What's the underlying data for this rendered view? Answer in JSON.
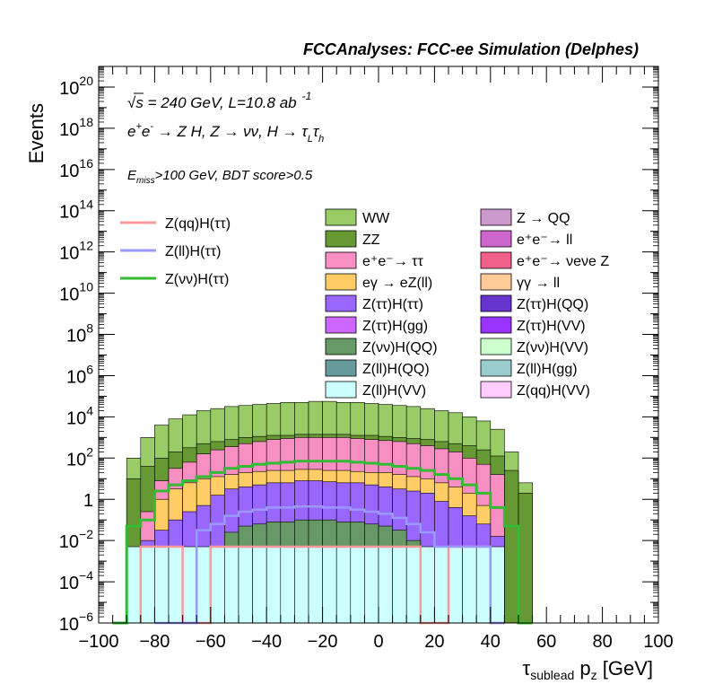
{
  "chart_data": {
    "type": "histogram",
    "title": "FCCAnalyses: FCC-ee Simulation (Delphes)",
    "xlabel": {
      "base": "τ",
      "sub": "sublead",
      "rest": " p",
      "sub2": "z",
      "unit": " [GeV]"
    },
    "ylabel": "Events",
    "xlim": [
      -100,
      100
    ],
    "ylim": [
      1e-06,
      1e+21
    ],
    "log_y": true,
    "bin_width": 5,
    "xticks": [
      "−100",
      "−80",
      "−60",
      "−40",
      "−20",
      "0",
      "20",
      "40",
      "60",
      "80",
      "100"
    ],
    "yticks": [
      {
        "base": "10",
        "exp": "−6"
      },
      {
        "base": "10",
        "exp": "−4"
      },
      {
        "base": "10",
        "exp": "−2"
      },
      {
        "base": "1",
        "exp": ""
      },
      {
        "base": "10",
        "exp": "2"
      },
      {
        "base": "10",
        "exp": "4"
      },
      {
        "base": "10",
        "exp": "6"
      },
      {
        "base": "10",
        "exp": "8"
      },
      {
        "base": "10",
        "exp": "10"
      },
      {
        "base": "10",
        "exp": "12"
      },
      {
        "base": "10",
        "exp": "14"
      },
      {
        "base": "10",
        "exp": "16"
      },
      {
        "base": "10",
        "exp": "18"
      },
      {
        "base": "10",
        "exp": "20"
      }
    ],
    "annotations": {
      "energy": {
        "sqrt": "√",
        "s": "s",
        "rest": " = 240 GeV, L=10.8 ab",
        "exp": "-1"
      },
      "process": "e⁺e⁻ → Z H, Z → νν, H → τ_L τ_h",
      "process_parts": {
        "a": "e",
        "ap": "+",
        "b": "e",
        "bp": "-",
        "mid": " → Z H, Z  → νν, H → τ",
        "s1": "L",
        "t": "τ",
        "s2": "h"
      },
      "cut": {
        "e": "E",
        "sub": "miss",
        "rest": ">100 GeV, BDT score>0.5"
      }
    },
    "stack_components": [
      {
        "name": "WW",
        "color": "#99cc66",
        "log10": [
          null,
          -6,
          2,
          3,
          3.6,
          3.9,
          4.1,
          4.3,
          4.4,
          4.5,
          4.55,
          4.6,
          4.65,
          4.7,
          4.7,
          4.75,
          4.75,
          4.7,
          4.7,
          4.65,
          4.6,
          4.55,
          4.5,
          4.4,
          4.3,
          4.2,
          4.0,
          3.8,
          3.4,
          2.3,
          0.8,
          -6,
          null,
          null,
          null,
          null,
          null,
          null,
          null,
          null
        ]
      },
      {
        "name": "ZZ",
        "color": "#669933",
        "log10": [
          null,
          -6,
          1,
          1.6,
          2,
          2.3,
          2.5,
          2.7,
          2.8,
          2.9,
          3.0,
          3.05,
          3.1,
          3.1,
          3.15,
          3.15,
          3.15,
          3.15,
          3.1,
          3.1,
          3.05,
          3.0,
          2.95,
          2.9,
          2.8,
          2.7,
          2.6,
          2.4,
          2.1,
          1.4,
          0.3,
          -6,
          null,
          null,
          null,
          null,
          null,
          null,
          null,
          null
        ]
      },
      {
        "name": "e⁺e⁻ → ττ",
        "color": "#f78fc2",
        "log10": [
          null,
          null,
          -6,
          -0.6,
          0.9,
          1.5,
          1.8,
          2.2,
          2.4,
          2.55,
          2.7,
          2.8,
          2.9,
          2.95,
          3.0,
          3.0,
          3.0,
          3.0,
          2.95,
          2.9,
          2.85,
          2.8,
          2.7,
          2.6,
          2.45,
          2.3,
          2.0,
          1.7,
          1.2,
          -6,
          null,
          null,
          null,
          null,
          null,
          null,
          null,
          null,
          null,
          null
        ]
      },
      {
        "name": "eγ → eZ(ll)",
        "color": "#ffcc66",
        "log10": [
          null,
          null,
          null,
          -6,
          0,
          0.5,
          0.8,
          1.0,
          1.1,
          1.2,
          1.3,
          1.35,
          1.4,
          1.4,
          1.45,
          1.45,
          1.4,
          1.4,
          1.35,
          1.3,
          1.3,
          1.2,
          1.1,
          1.0,
          0.8,
          0.6,
          0.3,
          -0.3,
          -6,
          null,
          null,
          null,
          null,
          null,
          null,
          null,
          null,
          null,
          null,
          null
        ]
      },
      {
        "name": "Z(ττ)H(ττ)",
        "color": "#9966ff",
        "log10": [
          null,
          null,
          -6,
          -2,
          -1.5,
          -1,
          -0.6,
          -0.3,
          0.2,
          0.5,
          0.6,
          0.7,
          0.8,
          0.8,
          0.9,
          0.9,
          0.85,
          0.8,
          0.8,
          0.7,
          0.6,
          0.5,
          0.4,
          0.3,
          -0.1,
          -0.4,
          -0.8,
          -1.2,
          -1.8,
          -6,
          null,
          null,
          null,
          null,
          null,
          null,
          null,
          null,
          null,
          null
        ]
      },
      {
        "name": "Z(νν)H(QQ)",
        "color": "#669966",
        "log10": [
          null,
          null,
          -6,
          -6,
          -6,
          -6,
          -6,
          -6,
          -2.5,
          -1.6,
          -1.3,
          -1.2,
          -1.1,
          -1.1,
          -1.0,
          -1.0,
          -1.0,
          -1.1,
          -1.1,
          -1.2,
          -1.3,
          -1.5,
          -2.0,
          -2.5,
          -6,
          -6,
          -6,
          -6,
          -6,
          -6,
          null,
          null,
          null,
          null,
          null,
          null,
          null,
          null,
          null,
          null
        ]
      },
      {
        "name": "Z(ll)H(VV)",
        "color": "#ccffff",
        "log10": [
          null,
          null,
          -2.3,
          -2.3,
          -2.3,
          -2.3,
          -2.3,
          -2.3,
          -2.3,
          -2.3,
          -2.3,
          -2.3,
          -2.3,
          -2.3,
          -2.3,
          -2.3,
          -2.3,
          -2.3,
          -2.3,
          -2.3,
          -2.3,
          -2.3,
          -2.3,
          -2.3,
          -2.3,
          -2.3,
          -2.3,
          -2.3,
          -2.3,
          -6,
          null,
          null,
          null,
          null,
          null,
          null,
          null,
          null,
          null,
          null
        ]
      }
    ],
    "signal_lines": [
      {
        "name": "Z(qq)H(ττ)",
        "color": "#ff9999",
        "log10": [
          null,
          null,
          null,
          -2.3,
          -2.3,
          -2.3,
          -6,
          -6,
          -2.3,
          -2.3,
          -2.3,
          -2.3,
          -2.3,
          -2.3,
          -2.3,
          -2.3,
          -2.3,
          -2.3,
          -2.3,
          -2.3,
          -2.3,
          -2.3,
          -2.3,
          -6,
          -6,
          -2.3,
          -2.3,
          -2.3,
          -6,
          null,
          null,
          null,
          null,
          null,
          null,
          null,
          null,
          null,
          null,
          null
        ]
      },
      {
        "name": "Z(ll)H(ττ)",
        "color": "#9999ff",
        "log10": [
          null,
          null,
          null,
          null,
          -6,
          -6,
          -6,
          -1.5,
          -1.2,
          -0.8,
          -0.6,
          -0.5,
          -0.4,
          -0.4,
          -0.35,
          -0.35,
          -0.4,
          -0.4,
          -0.5,
          -0.6,
          -0.7,
          -0.9,
          -1.2,
          -1.6,
          -2.3,
          -2.3,
          -2.3,
          -2.3,
          -6,
          null,
          null,
          null,
          null,
          null,
          null,
          null,
          null,
          null,
          null,
          null
        ]
      },
      {
        "name": "Z(νν)H(ττ)",
        "color": "#33bb33",
        "log10": [
          null,
          -6,
          -1.3,
          -1.0,
          0.4,
          0.7,
          0.9,
          1.1,
          1.3,
          1.5,
          1.6,
          1.7,
          1.75,
          1.8,
          1.85,
          1.85,
          1.85,
          1.85,
          1.8,
          1.75,
          1.7,
          1.6,
          1.5,
          1.4,
          1.2,
          1.0,
          0.7,
          0.3,
          -0.4,
          -1.3,
          -6,
          null,
          null,
          null,
          null,
          null,
          null,
          null,
          null,
          null
        ]
      }
    ],
    "legend": {
      "left": [
        {
          "label": "Z(qq)H(ττ)",
          "color": "#ff9999"
        },
        {
          "label": "Z(ll)H(ττ)",
          "color": "#9999ff"
        },
        {
          "label": "Z(νν)H(ττ)",
          "color": "#33bb33"
        }
      ],
      "middle": [
        {
          "label": "WW",
          "color": "#99cc66"
        },
        {
          "label": "ZZ",
          "color": "#669933"
        },
        {
          "label": "e⁺e⁻→ ττ",
          "color": "#f78fc2"
        },
        {
          "label": "eγ → eZ(ll)",
          "color": "#ffcc66"
        },
        {
          "label": "Z(ττ)H(ττ)",
          "color": "#9966ff"
        },
        {
          "label": "Z(ττ)H(gg)",
          "color": "#cc66ff"
        },
        {
          "label": "Z(νν)H(QQ)",
          "color": "#669966"
        },
        {
          "label": "Z(ll)H(QQ)",
          "color": "#669999"
        },
        {
          "label": "Z(ll)H(VV)",
          "color": "#ccffff"
        }
      ],
      "right": [
        {
          "label": "Z → QQ",
          "color": "#cc99cc"
        },
        {
          "label": "e⁺e⁻→ ll",
          "color": "#cc66cc"
        },
        {
          "label": "e⁺e⁻→ νeνe Z",
          "color": "#f0608a"
        },
        {
          "label": "γγ → ll",
          "color": "#ffcc99"
        },
        {
          "label": "Z(ττ)H(QQ)",
          "color": "#6633cc"
        },
        {
          "label": "Z(ττ)H(VV)",
          "color": "#9933ff"
        },
        {
          "label": "Z(νν)H(VV)",
          "color": "#ccffcc"
        },
        {
          "label": "Z(ll)H(gg)",
          "color": "#99cccc"
        },
        {
          "label": "Z(qq)H(VV)",
          "color": "#ffccff"
        }
      ],
      "placement": "top-center"
    }
  }
}
